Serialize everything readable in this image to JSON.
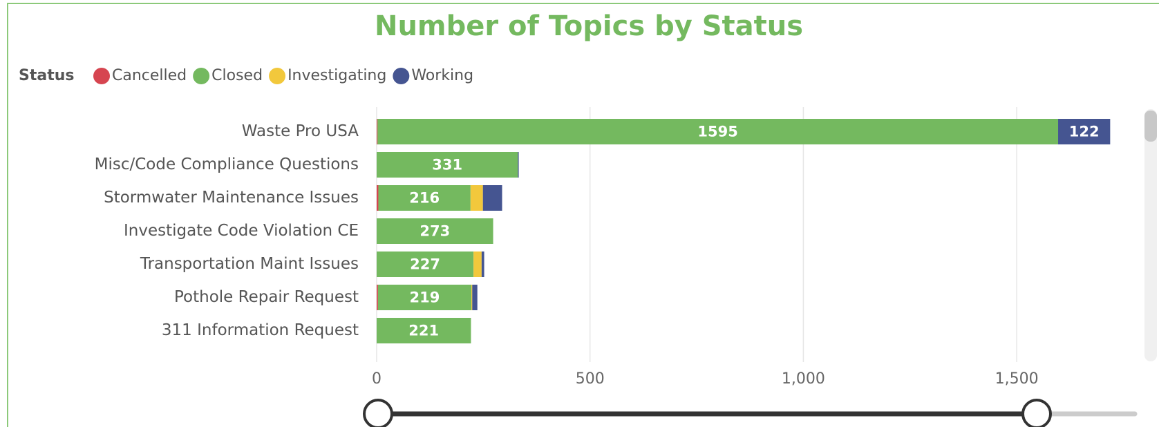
{
  "chart_data": {
    "type": "stacked_bar_horizontal",
    "title": "Number of Topics by Status",
    "legend_title": "Status",
    "categories": [
      "Waste Pro USA",
      "Misc/Code Compliance Questions",
      "Stormwater Maintenance Issues",
      "Investigate Code Violation CE",
      "Transportation Maint Issues",
      "Pothole Repair Request",
      "311 Information Request"
    ],
    "series": [
      {
        "name": "Cancelled",
        "color": "#d64550",
        "values": [
          2,
          0,
          4,
          0,
          0,
          3,
          0
        ]
      },
      {
        "name": "Closed",
        "color": "#74b95f",
        "values": [
          1595,
          331,
          216,
          273,
          227,
          219,
          221
        ]
      },
      {
        "name": "Investigating",
        "color": "#f2c83c",
        "values": [
          0,
          0,
          29,
          0,
          19,
          2,
          0
        ]
      },
      {
        "name": "Working",
        "color": "#455591",
        "values": [
          122,
          2,
          45,
          0,
          6,
          12,
          0
        ]
      }
    ],
    "xlim": [
      0,
      1780
    ],
    "xticks": [
      0,
      500,
      {
        "value": 1000,
        "label": "1,000"
      },
      {
        "value": 1500,
        "label": "1,500"
      }
    ],
    "grid": true
  }
}
